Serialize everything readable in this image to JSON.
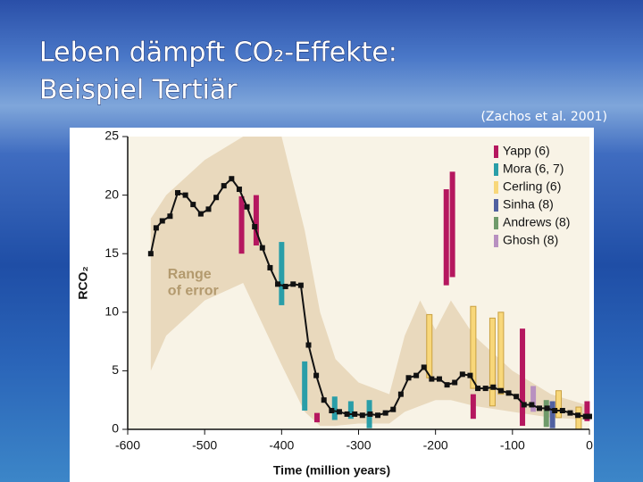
{
  "chart_data": {
    "type": "line",
    "title": [
      "Leben dämpft CO₂-Effekte:",
      "Beispiel Tertiär"
    ],
    "citation": "(Zachos et al. 2001)",
    "x_label": "Time (million years)",
    "y_label": "RCO₂",
    "annotation": [
      "Range",
      "of error"
    ],
    "xlim": [
      -600,
      0
    ],
    "ylim": [
      0,
      25
    ],
    "xticks": [
      -600,
      -500,
      -400,
      -300,
      -200,
      -100,
      0
    ],
    "yticks": [
      0,
      5,
      10,
      15,
      20,
      25
    ],
    "line": {
      "color": "#111111",
      "x": [
        -570,
        -563,
        -555,
        -545,
        -535,
        -525,
        -515,
        -505,
        -495,
        -485,
        -475,
        -465,
        -455,
        -445,
        -435,
        -425,
        -415,
        -405,
        -395,
        -385,
        -375,
        -365,
        -355,
        -345,
        -335,
        -325,
        -315,
        -305,
        -295,
        -285,
        -275,
        -265,
        -255,
        -245,
        -235,
        -225,
        -215,
        -205,
        -195,
        -185,
        -175,
        -165,
        -155,
        -145,
        -135,
        -125,
        -115,
        -105,
        -95,
        -85,
        -75,
        -65,
        -55,
        -45,
        -35,
        -25,
        -15,
        -5,
        0
      ],
      "values": [
        15,
        17.2,
        17.8,
        18.2,
        20.2,
        20,
        19.2,
        18.4,
        18.8,
        19.8,
        20.8,
        21.4,
        20.5,
        19,
        17.3,
        15.5,
        13.8,
        12.4,
        12.2,
        12.4,
        12.3,
        7.2,
        4.6,
        2.5,
        1.6,
        1.5,
        1.3,
        1.3,
        1.2,
        1.3,
        1.2,
        1.4,
        1.7,
        3,
        4.4,
        4.6,
        5.3,
        4.3,
        4.3,
        3.8,
        4,
        4.7,
        4.6,
        3.5,
        3.5,
        3.6,
        3.3,
        3.1,
        2.8,
        2.1,
        2.1,
        1.8,
        1.8,
        1.6,
        1.6,
        1.4,
        1.2,
        1.1,
        1.1
      ]
    },
    "band": {
      "color": "#e9d9bd",
      "x": [
        -570,
        -550,
        -500,
        -450,
        -400,
        -370,
        -350,
        -330,
        -300,
        -260,
        -240,
        -220,
        -200,
        -180,
        -150,
        -100,
        -50,
        0
      ],
      "upper": [
        18,
        20,
        23,
        25,
        25,
        17,
        10,
        6,
        4,
        3,
        8,
        11,
        8.5,
        11,
        8,
        5,
        3,
        2
      ],
      "lower": [
        5,
        8,
        11,
        12.5,
        5.5,
        1.5,
        0.3,
        0.3,
        0.5,
        0.5,
        1.5,
        2,
        2.5,
        2.5,
        2,
        1.5,
        1,
        0.8
      ]
    },
    "series": [
      {
        "name": "Yapp (6)",
        "color": "#b5175f",
        "x": [
          -452,
          -433,
          -354,
          -186,
          -178,
          -151,
          -87,
          -3
        ],
        "low": [
          15,
          15.7,
          0.6,
          12.3,
          13,
          0.9,
          0.3,
          0.7
        ],
        "high": [
          19.9,
          20,
          1.4,
          20.5,
          22,
          3,
          8.6,
          2.4
        ]
      },
      {
        "name": "Mora (6, 7)",
        "color": "#2a9ea8",
        "x": [
          -400,
          -370,
          -331,
          -310,
          -286
        ],
        "low": [
          10.6,
          1.6,
          0.8,
          0.9,
          0.1
        ],
        "high": [
          16,
          5.8,
          2.8,
          2.4,
          2.5
        ]
      },
      {
        "name": "Cerling (6)",
        "color": "#f8d77a",
        "x": [
          -208,
          -151,
          -126,
          -115,
          -40,
          -14
        ],
        "low": [
          4.4,
          3.5,
          2,
          3,
          1,
          0
        ],
        "high": [
          9.8,
          10.5,
          9.5,
          10,
          3.3,
          1.9
        ]
      },
      {
        "name": "Sinha (8)",
        "color": "#5060a0",
        "x": [
          -48
        ],
        "low": [
          0.1
        ],
        "high": [
          2.4
        ]
      },
      {
        "name": "Andrews (8)",
        "color": "#6f9a6a",
        "x": [
          -56
        ],
        "low": [
          0.2
        ],
        "high": [
          2.5
        ]
      },
      {
        "name": "Ghosh (8)",
        "color": "#b890c0",
        "x": [
          -73
        ],
        "low": [
          1.5
        ],
        "high": [
          3.7
        ]
      }
    ]
  }
}
